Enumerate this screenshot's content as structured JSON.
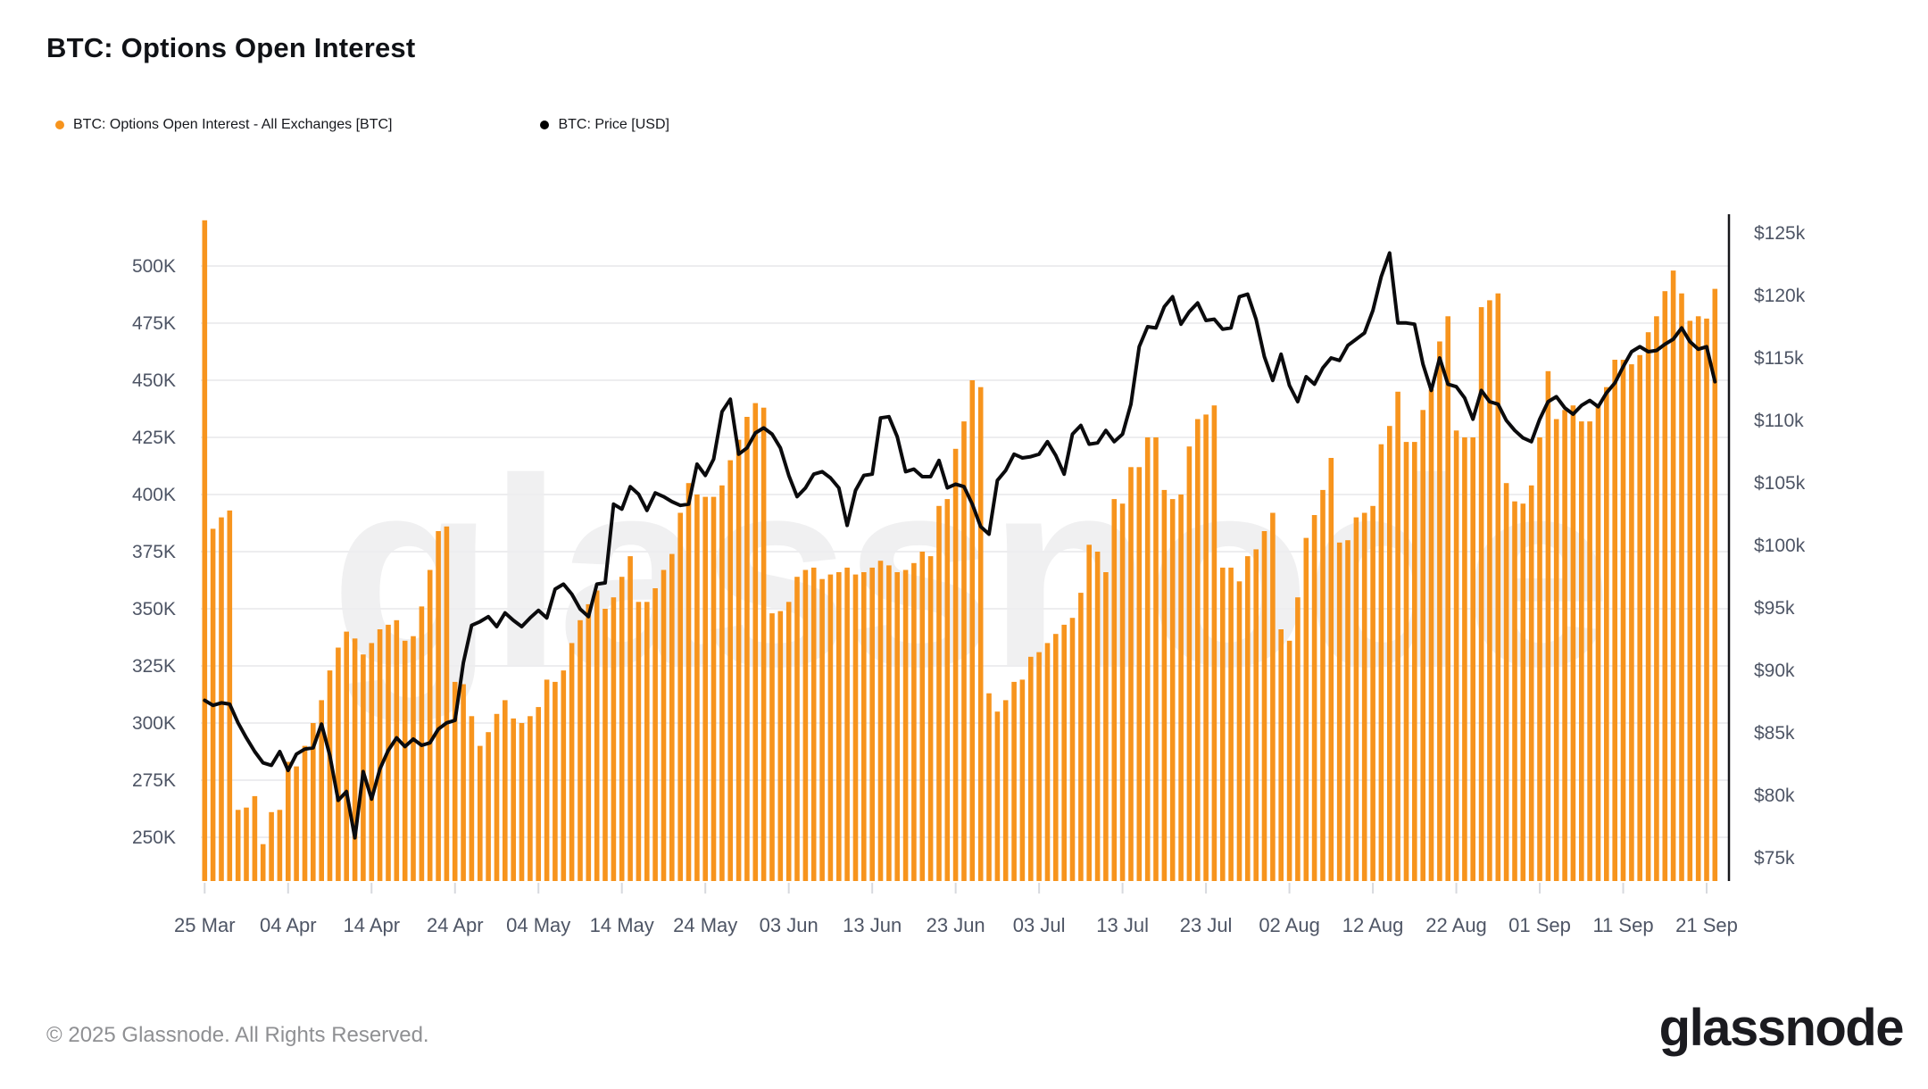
{
  "header": {
    "title": "BTC: Options Open Interest"
  },
  "legend": {
    "items": [
      {
        "label": "BTC: Options Open Interest - All Exchanges [BTC]",
        "color": "#F7941D"
      },
      {
        "label": "BTC: Price [USD]",
        "color": "#000000"
      }
    ]
  },
  "watermark": {
    "text": "glassnode"
  },
  "footer": {
    "copyright": "© 2025 Glassnode. All Rights Reserved.",
    "logo_text": "glassnode"
  },
  "chart_data": {
    "type": "bar",
    "title": "BTC: Options Open Interest",
    "subtitle": "",
    "grid": "horizontal",
    "legend_position": "top-left",
    "x_start_date": "25 Mar",
    "x_end_date": "22 Sep",
    "x_frequency": "daily",
    "x_tick_labels": [
      "25 Mar",
      "04 Apr",
      "14 Apr",
      "24 Apr",
      "04 May",
      "14 May",
      "24 May",
      "03 Jun",
      "13 Jun",
      "23 Jun",
      "03 Jul",
      "13 Jul",
      "23 Jul",
      "02 Aug",
      "12 Aug",
      "22 Aug",
      "01 Sep",
      "11 Sep",
      "21 Sep"
    ],
    "left_axis": {
      "unit": "contracts",
      "tick_labels": [
        "500K",
        "475K",
        "450K",
        "425K",
        "400K",
        "375K",
        "350K",
        "325K",
        "300K",
        "275K",
        "250K"
      ],
      "tick_values_k": [
        500,
        475,
        450,
        425,
        400,
        375,
        350,
        325,
        300,
        275,
        250
      ],
      "plot_min_k": 230.5,
      "plot_max_k": 520.5
    },
    "right_axis": {
      "unit": "USD",
      "tick_labels": [
        "$125k",
        "$120k",
        "$115k",
        "$110k",
        "$105k",
        "$100k",
        "$95k",
        "$90k",
        "$85k",
        "$80k",
        "$75k"
      ],
      "tick_values_k": [
        125,
        120,
        115,
        110,
        105,
        100,
        95,
        90,
        85,
        80,
        75
      ]
    },
    "series": [
      {
        "name": "BTC: Options Open Interest - All Exchanges [BTC]",
        "type": "bar",
        "color": "#F7941D",
        "unit": "K contracts",
        "values": [
          520,
          385,
          390,
          393,
          262,
          263,
          268,
          247,
          261,
          262,
          283,
          281,
          290,
          300,
          310,
          323,
          333,
          340,
          337,
          330,
          335,
          341,
          343,
          345,
          336,
          338,
          351,
          367,
          384,
          386,
          318,
          317,
          303,
          290,
          296,
          304,
          310,
          302,
          300,
          303,
          307,
          319,
          318,
          323,
          335,
          345,
          352,
          358,
          350,
          355,
          364,
          373,
          353,
          353,
          359,
          367,
          374,
          392,
          405,
          400,
          399,
          399,
          404,
          415,
          424,
          434,
          440,
          438,
          348,
          349,
          353,
          364,
          367,
          368,
          363,
          365,
          366,
          368,
          365,
          366,
          368,
          371,
          369,
          366,
          367,
          370,
          375,
          373,
          395,
          398,
          420,
          432,
          450,
          447,
          313,
          305,
          310,
          318,
          319,
          329,
          331,
          335,
          339,
          343,
          346,
          357,
          378,
          375,
          366,
          398,
          396,
          412,
          412,
          425,
          425,
          402,
          398,
          400,
          421,
          433,
          435,
          439,
          368,
          368,
          362,
          373,
          376,
          384,
          392,
          341,
          336,
          355,
          381,
          391,
          402,
          416,
          379,
          380,
          390,
          392,
          395,
          422,
          430,
          445,
          423,
          423,
          437,
          446,
          467,
          478,
          428,
          425,
          425,
          482,
          485,
          488,
          405,
          397,
          396,
          404,
          425,
          454,
          433,
          437,
          439,
          432,
          432,
          439,
          447,
          459,
          459,
          457,
          461,
          471,
          478,
          489,
          498,
          488,
          476,
          478,
          477,
          490
        ]
      },
      {
        "name": "BTC: Price [USD]",
        "type": "line",
        "color": "#0b0b0d",
        "unit": "$k",
        "values": [
          87.6,
          87.2,
          87.4,
          87.3,
          85.8,
          84.6,
          83.5,
          82.6,
          82.4,
          83.5,
          82.0,
          83.3,
          83.7,
          83.8,
          85.7,
          83.2,
          79.6,
          80.3,
          76.6,
          81.9,
          79.7,
          82.1,
          83.6,
          84.6,
          83.9,
          84.5,
          84.0,
          84.2,
          85.3,
          85.8,
          86.0,
          90.6,
          93.6,
          93.9,
          94.3,
          93.5,
          94.6,
          94.0,
          93.5,
          94.2,
          94.8,
          94.2,
          96.5,
          96.9,
          96.1,
          94.9,
          94.3,
          96.9,
          97.0,
          103.3,
          102.9,
          104.7,
          104.1,
          102.8,
          104.2,
          103.9,
          103.5,
          103.2,
          103.3,
          106.5,
          105.6,
          106.9,
          110.7,
          111.7,
          107.3,
          107.8,
          109.0,
          109.4,
          108.9,
          107.8,
          105.6,
          103.9,
          104.6,
          105.7,
          105.9,
          105.4,
          104.6,
          101.6,
          104.4,
          105.6,
          105.7,
          110.2,
          110.3,
          108.7,
          105.9,
          106.1,
          105.5,
          105.5,
          106.8,
          104.6,
          104.9,
          104.7,
          103.3,
          101.5,
          100.9,
          105.2,
          106.0,
          107.3,
          107.0,
          107.1,
          107.3,
          108.3,
          107.2,
          105.7,
          108.9,
          109.6,
          108.1,
          108.2,
          109.2,
          108.3,
          108.9,
          111.3,
          115.9,
          117.5,
          117.4,
          119.1,
          119.9,
          117.7,
          118.7,
          119.4,
          118.0,
          118.1,
          117.3,
          117.4,
          119.9,
          120.1,
          118.1,
          115.1,
          113.2,
          115.3,
          112.8,
          111.5,
          113.5,
          112.9,
          114.2,
          115.0,
          114.8,
          116.0,
          116.5,
          117.0,
          118.8,
          121.5,
          123.4,
          117.8,
          117.8,
          117.7,
          114.5,
          112.4,
          115.0,
          112.9,
          112.7,
          111.8,
          110.1,
          112.4,
          111.5,
          111.3,
          110.0,
          109.2,
          108.6,
          108.3,
          110.1,
          111.5,
          111.9,
          111.0,
          110.5,
          111.2,
          111.6,
          111.1,
          112.2,
          113.0,
          114.3,
          115.5,
          115.9,
          115.5,
          115.6,
          116.1,
          116.5,
          117.4,
          116.3,
          115.7,
          115.9,
          113.1
        ]
      }
    ]
  }
}
